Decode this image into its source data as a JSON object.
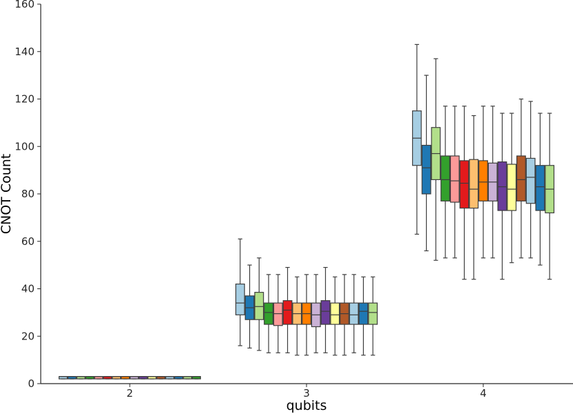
{
  "chart_data": {
    "type": "box",
    "xlabel": "qubits",
    "ylabel": "CNOT Count",
    "ylim": [
      0,
      160
    ],
    "yticks": [
      0,
      20,
      40,
      60,
      80,
      100,
      120,
      140,
      160
    ],
    "categories": [
      "2",
      "3",
      "4"
    ],
    "palette": [
      "#a6cee3",
      "#1f78b4",
      "#b2df8a",
      "#33a02c",
      "#fb9a99",
      "#e31a1c",
      "#fdbf6f",
      "#ff7f00",
      "#cab2d6",
      "#6a3d9a",
      "#ffff99",
      "#b15928"
    ],
    "groups": [
      {
        "category": "2",
        "boxes": [
          [
            2,
            2,
            3,
            3,
            3
          ],
          [
            2,
            2,
            3,
            3,
            3
          ],
          [
            2,
            2,
            3,
            3,
            3
          ],
          [
            2,
            2,
            3,
            3,
            3
          ],
          [
            2,
            2,
            3,
            3,
            3
          ],
          [
            2,
            2,
            3,
            3,
            3
          ],
          [
            2,
            2,
            3,
            3,
            3
          ],
          [
            2,
            2,
            3,
            3,
            3
          ],
          [
            2,
            2,
            3,
            3,
            3
          ],
          [
            2,
            2,
            3,
            3,
            3
          ],
          [
            2,
            2,
            3,
            3,
            3
          ],
          [
            2,
            2,
            3,
            3,
            3
          ],
          [
            2,
            2,
            3,
            3,
            3
          ],
          [
            2,
            2,
            3,
            3,
            3
          ],
          [
            2,
            2,
            3,
            3,
            3
          ],
          [
            2,
            2,
            3,
            3,
            3
          ]
        ]
      },
      {
        "category": "3",
        "boxes": [
          [
            16,
            29,
            34,
            42,
            61
          ],
          [
            15,
            27,
            32,
            37,
            50
          ],
          [
            14,
            27,
            32.5,
            38.5,
            53
          ],
          [
            13,
            25,
            30,
            34,
            46
          ],
          [
            13,
            24.5,
            29.5,
            34,
            46
          ],
          [
            13,
            25,
            31,
            35,
            49
          ],
          [
            12,
            25,
            29.5,
            34,
            45
          ],
          [
            12,
            25,
            29.5,
            34,
            46
          ],
          [
            13,
            24,
            29,
            34,
            46
          ],
          [
            13,
            25,
            30.5,
            35,
            49
          ],
          [
            12,
            25,
            29,
            34,
            45
          ],
          [
            12,
            25,
            29.5,
            34,
            46
          ],
          [
            13,
            25,
            29,
            34,
            46
          ],
          [
            12,
            25,
            30.5,
            34,
            45
          ],
          [
            12,
            25,
            30,
            34,
            45
          ]
        ]
      },
      {
        "category": "4",
        "boxes": [
          [
            63,
            92,
            103.5,
            115,
            143
          ],
          [
            56,
            80,
            91,
            100.5,
            130
          ],
          [
            52,
            86,
            97,
            108,
            137
          ],
          [
            53,
            77,
            86,
            96,
            117
          ],
          [
            53,
            76.5,
            85.5,
            96,
            117
          ],
          [
            44,
            74,
            84.5,
            94,
            117
          ],
          [
            44,
            74,
            82,
            94.5,
            113
          ],
          [
            53,
            77,
            85,
            94,
            117
          ],
          [
            53,
            77,
            85,
            93,
            117
          ],
          [
            44,
            73,
            83,
            93.5,
            114
          ],
          [
            51,
            73,
            82,
            92.5,
            114
          ],
          [
            53,
            77,
            86,
            96,
            120
          ],
          [
            53,
            76,
            87,
            95,
            119
          ],
          [
            50,
            73,
            83,
            92,
            114
          ],
          [
            44,
            72,
            82,
            92,
            114
          ]
        ]
      }
    ]
  }
}
